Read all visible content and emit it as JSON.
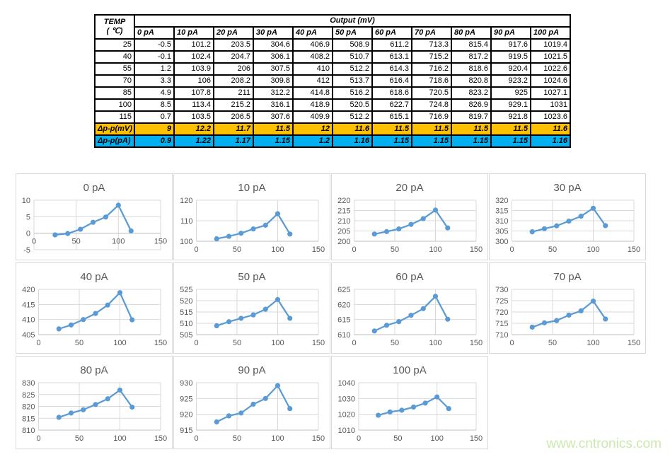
{
  "table": {
    "corner_title_line1": "TEMP",
    "corner_title_line2": "( ℃)",
    "output_header": "Output (mV)",
    "column_headers": [
      "0 pA",
      "10 pA",
      "20 pA",
      "30 pA",
      "40 pA",
      "50 pA",
      "60 pA",
      "70 pA",
      "80 pA",
      "90 pA",
      "100 pA"
    ],
    "temps": [
      "25",
      "40",
      "55",
      "70",
      "85",
      "100",
      "115"
    ],
    "rows": [
      [
        "-0.5",
        "101.2",
        "203.5",
        "304.6",
        "406.9",
        "508.9",
        "611.2",
        "713.3",
        "815.4",
        "917.6",
        "1019.4"
      ],
      [
        "-0.1",
        "102.4",
        "204.7",
        "306.1",
        "408.2",
        "510.7",
        "613.1",
        "715.2",
        "817.2",
        "919.5",
        "1021.5"
      ],
      [
        "1.2",
        "103.9",
        "206",
        "307.5",
        "410",
        "512.2",
        "614.3",
        "716.2",
        "818.6",
        "920.4",
        "1022.6"
      ],
      [
        "3.3",
        "106",
        "208.2",
        "309.8",
        "412",
        "513.7",
        "616.4",
        "718.6",
        "820.8",
        "923.2",
        "1024.6"
      ],
      [
        "4.9",
        "107.8",
        "211",
        "312.2",
        "414.8",
        "516.2",
        "618.6",
        "720.5",
        "823.2",
        "925",
        "1027.1"
      ],
      [
        "8.5",
        "113.4",
        "215.2",
        "316.1",
        "418.9",
        "520.5",
        "622.7",
        "724.8",
        "826.9",
        "929.1",
        "1031"
      ],
      [
        "0.7",
        "103.5",
        "206.5",
        "307.6",
        "409.9",
        "512.2",
        "615.1",
        "716.9",
        "819.7",
        "921.8",
        "1023.6"
      ]
    ],
    "delta_mv_label": "Δp-p(mV)",
    "delta_mv": [
      "9",
      "12.2",
      "11.7",
      "11.5",
      "12",
      "11.6",
      "11.5",
      "11.5",
      "11.5",
      "11.5",
      "11.6"
    ],
    "delta_pa_label": "Δp-p(pA)",
    "delta_pa": [
      "0.9",
      "1.22",
      "1.17",
      "1.15",
      "1.2",
      "1.16",
      "1.15",
      "1.15",
      "1.15",
      "1.15",
      "1.16"
    ],
    "colors": {
      "delta_mv_bg": "#FFC000",
      "delta_pa_bg": "#00B0F0"
    }
  },
  "chart_style": {
    "line_color": "#5B9BD5",
    "grid_color": "#D9D9D9",
    "axis_color": "#BFBFBF",
    "text_color": "#595959"
  },
  "chart_data": [
    {
      "type": "line",
      "title": "0 pA",
      "x": [
        25,
        40,
        55,
        70,
        85,
        100,
        115
      ],
      "y": [
        -0.5,
        -0.1,
        1.2,
        3.3,
        4.9,
        8.5,
        0.7
      ],
      "xlim": [
        0,
        150
      ],
      "xticks": [
        0,
        50,
        100,
        150
      ],
      "ylim": [
        -5,
        10
      ],
      "yticks": [
        -5,
        0,
        5,
        10
      ]
    },
    {
      "type": "line",
      "title": "10 pA",
      "x": [
        25,
        40,
        55,
        70,
        85,
        100,
        115
      ],
      "y": [
        101.2,
        102.4,
        103.9,
        106,
        107.8,
        113.4,
        103.5
      ],
      "xlim": [
        0,
        150
      ],
      "xticks": [
        0,
        50,
        100,
        150
      ],
      "ylim": [
        100,
        120
      ],
      "yticks": [
        100,
        110,
        120
      ]
    },
    {
      "type": "line",
      "title": "20 pA",
      "x": [
        25,
        40,
        55,
        70,
        85,
        100,
        115
      ],
      "y": [
        203.5,
        204.7,
        206,
        208.2,
        211,
        215.2,
        206.5
      ],
      "xlim": [
        0,
        150
      ],
      "xticks": [
        0,
        50,
        100,
        150
      ],
      "ylim": [
        200,
        220
      ],
      "yticks": [
        200,
        205,
        210,
        215,
        220
      ]
    },
    {
      "type": "line",
      "title": "30 pA",
      "x": [
        25,
        40,
        55,
        70,
        85,
        100,
        115
      ],
      "y": [
        304.6,
        306.1,
        307.5,
        309.8,
        312.2,
        316.1,
        307.6
      ],
      "xlim": [
        0,
        150
      ],
      "xticks": [
        0,
        50,
        100,
        150
      ],
      "ylim": [
        300,
        320
      ],
      "yticks": [
        300,
        305,
        310,
        315,
        320
      ]
    },
    {
      "type": "line",
      "title": "40 pA",
      "x": [
        25,
        40,
        55,
        70,
        85,
        100,
        115
      ],
      "y": [
        406.9,
        408.2,
        410,
        412,
        414.8,
        418.9,
        409.9
      ],
      "xlim": [
        0,
        150
      ],
      "xticks": [
        0,
        50,
        100,
        150
      ],
      "ylim": [
        405,
        420
      ],
      "yticks": [
        405,
        410,
        415,
        420
      ]
    },
    {
      "type": "line",
      "title": "50 pA",
      "x": [
        25,
        40,
        55,
        70,
        85,
        100,
        115
      ],
      "y": [
        508.9,
        510.7,
        512.2,
        513.7,
        516.2,
        520.5,
        512.2
      ],
      "xlim": [
        0,
        150
      ],
      "xticks": [
        0,
        50,
        100,
        150
      ],
      "ylim": [
        505,
        525
      ],
      "yticks": [
        505,
        510,
        515,
        520,
        525
      ]
    },
    {
      "type": "line",
      "title": "60 pA",
      "x": [
        25,
        40,
        55,
        70,
        85,
        100,
        115
      ],
      "y": [
        611.2,
        613.1,
        614.3,
        616.4,
        618.6,
        622.7,
        615.1
      ],
      "xlim": [
        0,
        150
      ],
      "xticks": [
        0,
        50,
        100,
        150
      ],
      "ylim": [
        610,
        625
      ],
      "yticks": [
        610,
        615,
        620,
        625
      ]
    },
    {
      "type": "line",
      "title": "70 pA",
      "x": [
        25,
        40,
        55,
        70,
        85,
        100,
        115
      ],
      "y": [
        713.3,
        715.2,
        716.2,
        718.6,
        720.5,
        724.8,
        716.9
      ],
      "xlim": [
        0,
        150
      ],
      "xticks": [
        0,
        50,
        100,
        150
      ],
      "ylim": [
        710,
        730
      ],
      "yticks": [
        710,
        715,
        720,
        725,
        730
      ]
    },
    {
      "type": "line",
      "title": "80 pA",
      "x": [
        25,
        40,
        55,
        70,
        85,
        100,
        115
      ],
      "y": [
        815.4,
        817.2,
        818.6,
        820.8,
        823.2,
        826.9,
        819.7
      ],
      "xlim": [
        0,
        150
      ],
      "xticks": [
        0,
        50,
        100,
        150
      ],
      "ylim": [
        810,
        830
      ],
      "yticks": [
        810,
        815,
        820,
        825,
        830
      ]
    },
    {
      "type": "line",
      "title": "90 pA",
      "x": [
        25,
        40,
        55,
        70,
        85,
        100,
        115
      ],
      "y": [
        917.6,
        919.5,
        920.4,
        923.2,
        925,
        929.1,
        921.8
      ],
      "xlim": [
        0,
        150
      ],
      "xticks": [
        0,
        50,
        100,
        150
      ],
      "ylim": [
        915,
        930
      ],
      "yticks": [
        915,
        920,
        925,
        930
      ]
    },
    {
      "type": "line",
      "title": "100 pA",
      "x": [
        25,
        40,
        55,
        70,
        85,
        100,
        115
      ],
      "y": [
        1019.4,
        1021.5,
        1022.6,
        1024.6,
        1027.1,
        1031,
        1023.6
      ],
      "xlim": [
        0,
        150
      ],
      "xticks": [
        0,
        50,
        100,
        150
      ],
      "ylim": [
        1010,
        1040
      ],
      "yticks": [
        1010,
        1020,
        1030,
        1040
      ]
    }
  ],
  "watermark": "www.cntronics.com"
}
